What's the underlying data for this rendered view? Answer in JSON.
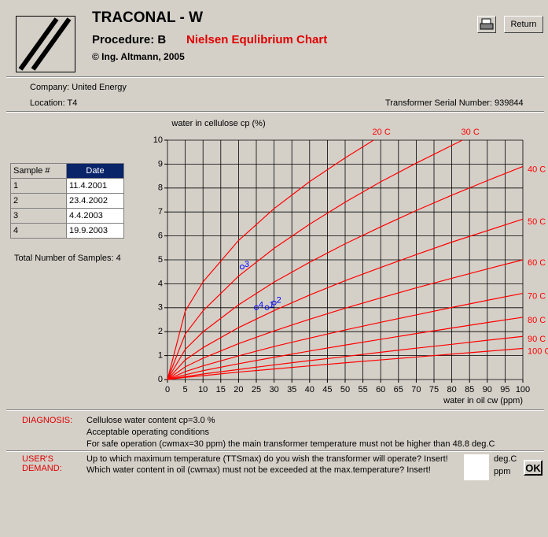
{
  "header": {
    "title": "TRACONAL - W",
    "procedure": "Procedure: B",
    "subtitle": "Nielsen Equlibrium Chart",
    "copyright": "© Ing. Altmann, 2005"
  },
  "buttons": {
    "return": "Return",
    "ok": "OK"
  },
  "info": {
    "company": "Company: United Energy",
    "location": "Location: T4",
    "serial": "Transformer Serial Number: 939844"
  },
  "table": {
    "columns": [
      "Sample #",
      "Date"
    ],
    "rows": [
      [
        "1",
        "11.4.2001"
      ],
      [
        "2",
        "23.4.2002"
      ],
      [
        "3",
        "4.4.2003"
      ],
      [
        "4",
        "19.9.2003"
      ]
    ]
  },
  "total": "Total Number of Samples: 4",
  "diagnosis": {
    "label": "DIAGNOSIS:",
    "lines": [
      "Cellulose water content cp=3.0 %",
      "Acceptable operating conditions",
      "For safe operation (cwmax=30 ppm) the main transformer temperature must not be higher than 48.8 deg.C"
    ]
  },
  "demand": {
    "label": "USER'S DEMAND:",
    "lines": [
      "Up to which maximum temperature (TTSmax) do you wish the transformer will operate? Insert!",
      "Which water content in oil (cwmax) must not be exceeded at the max.temperature? Insert!"
    ],
    "units": [
      "deg.C",
      "ppm"
    ]
  },
  "chart_data": {
    "type": "line",
    "ylabel": "water in cellulose cp (%)",
    "xlabel": "water in oil cw (ppm)",
    "xlim": [
      0,
      100
    ],
    "xticks": [
      0,
      5,
      10,
      15,
      20,
      25,
      30,
      35,
      40,
      45,
      50,
      55,
      60,
      65,
      70,
      75,
      80,
      85,
      90,
      95,
      100
    ],
    "ylim": [
      0,
      10
    ],
    "yticks": [
      0,
      1,
      2,
      3,
      4,
      5,
      6,
      7,
      8,
      9,
      10
    ],
    "grid": true,
    "series": [
      {
        "name": "20 C",
        "color": "#ff0000",
        "x": [
          0,
          5,
          10,
          20,
          30,
          40,
          50,
          58
        ],
        "values": [
          0,
          2.86,
          4.08,
          5.81,
          7.14,
          8.27,
          9.26,
          10
        ]
      },
      {
        "name": "30 C",
        "color": "#ff0000",
        "x": [
          0,
          5,
          10,
          20,
          30,
          40,
          50,
          60,
          70,
          83
        ],
        "values": [
          0,
          1.9,
          2.87,
          4.32,
          5.48,
          6.49,
          7.41,
          8.26,
          9.04,
          10
        ]
      },
      {
        "name": "40 C",
        "color": "#ff0000",
        "x": [
          0,
          5,
          10,
          20,
          30,
          40,
          50,
          60,
          70,
          80,
          90,
          100
        ],
        "values": [
          0,
          1.26,
          1.99,
          3.12,
          4.07,
          4.9,
          5.67,
          6.38,
          7.06,
          7.7,
          8.31,
          8.9
        ]
      },
      {
        "name": "50 C",
        "color": "#ff0000",
        "x": [
          0,
          5,
          10,
          20,
          30,
          40,
          50,
          60,
          70,
          80,
          90,
          100
        ],
        "values": [
          0,
          0.82,
          1.33,
          2.17,
          2.88,
          3.53,
          4.13,
          4.68,
          5.22,
          5.74,
          6.22,
          6.7
        ]
      },
      {
        "name": "60 C",
        "color": "#ff0000",
        "x": [
          0,
          5,
          10,
          20,
          30,
          40,
          50,
          60,
          70,
          80,
          90,
          100
        ],
        "values": [
          0,
          0.53,
          0.89,
          1.5,
          2.03,
          2.52,
          2.98,
          3.41,
          3.83,
          4.23,
          4.62,
          5
        ]
      },
      {
        "name": "70 C",
        "color": "#ff0000",
        "x": [
          0,
          5,
          10,
          20,
          30,
          40,
          50,
          60,
          70,
          80,
          90,
          100
        ],
        "values": [
          0,
          0.33,
          0.57,
          0.99,
          1.38,
          1.73,
          2.07,
          2.39,
          2.7,
          3.01,
          3.31,
          3.6
        ]
      },
      {
        "name": "80 C",
        "color": "#ff0000",
        "x": [
          0,
          5,
          10,
          20,
          30,
          40,
          50,
          60,
          70,
          80,
          90,
          100
        ],
        "values": [
          0,
          0.2,
          0.37,
          0.66,
          0.93,
          1.19,
          1.44,
          1.68,
          1.92,
          2.15,
          2.38,
          2.6
        ]
      },
      {
        "name": "90 C",
        "color": "#ff0000",
        "x": [
          0,
          5,
          10,
          20,
          30,
          40,
          50,
          60,
          70,
          80,
          90,
          100
        ],
        "values": [
          0,
          0.12,
          0.23,
          0.42,
          0.61,
          0.79,
          0.96,
          1.14,
          1.31,
          1.47,
          1.64,
          1.8
        ]
      },
      {
        "name": "100 C",
        "color": "#ff0000",
        "x": [
          0,
          5,
          10,
          20,
          30,
          40,
          50,
          60,
          70,
          80,
          90,
          100
        ],
        "values": [
          0,
          0.09,
          0.16,
          0.31,
          0.44,
          0.57,
          0.7,
          0.82,
          0.94,
          1.06,
          1.18,
          1.3
        ]
      }
    ],
    "points": {
      "color": "#0000ff",
      "x": [
        28,
        30,
        21,
        25
      ],
      "values": [
        3.0,
        3.2,
        4.7,
        3.0
      ],
      "labels": [
        "1",
        "2",
        "3",
        "4"
      ]
    }
  }
}
